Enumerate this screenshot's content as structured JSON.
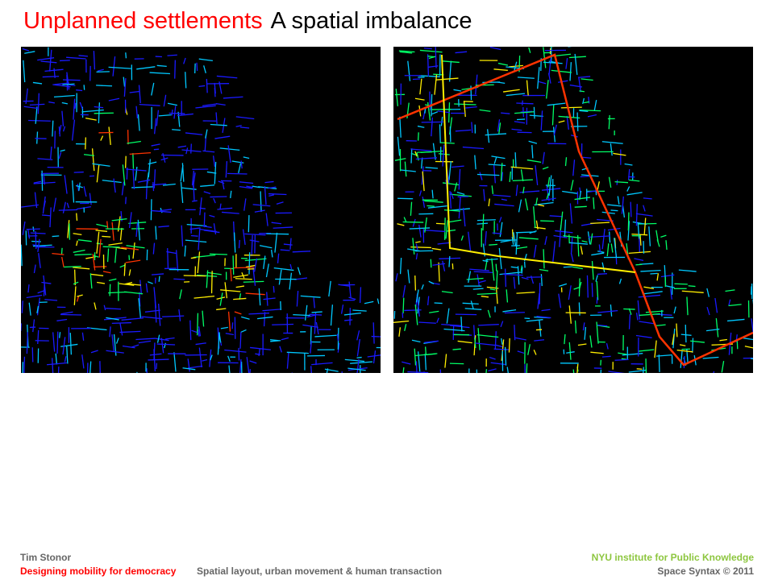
{
  "slide": {
    "title_red": "Unplanned settlements",
    "title_black": "A spatial imbalance"
  },
  "maps": {
    "left": {
      "palette": [
        "#1a1aff",
        "#00c8ff",
        "#00ff66",
        "#ffee00",
        "#ff3300"
      ],
      "hotspot_intensity": "local"
    },
    "right": {
      "palette": [
        "#1a1aff",
        "#00c8ff",
        "#00ff66",
        "#ffee00",
        "#ff3300"
      ],
      "hotspot_intensity": "global"
    }
  },
  "footer": {
    "author": "Tim Stonor",
    "series": "Designing mobility for democracy",
    "subtitle": "Spatial layout, urban movement & human transaction",
    "org": "NYU institute for Public Knowledge",
    "copyright": "Space Syntax © 2011"
  },
  "colors": {
    "accent_red": "#ff0000",
    "org_green": "#8dc63f",
    "footer_gray": "#666666"
  }
}
